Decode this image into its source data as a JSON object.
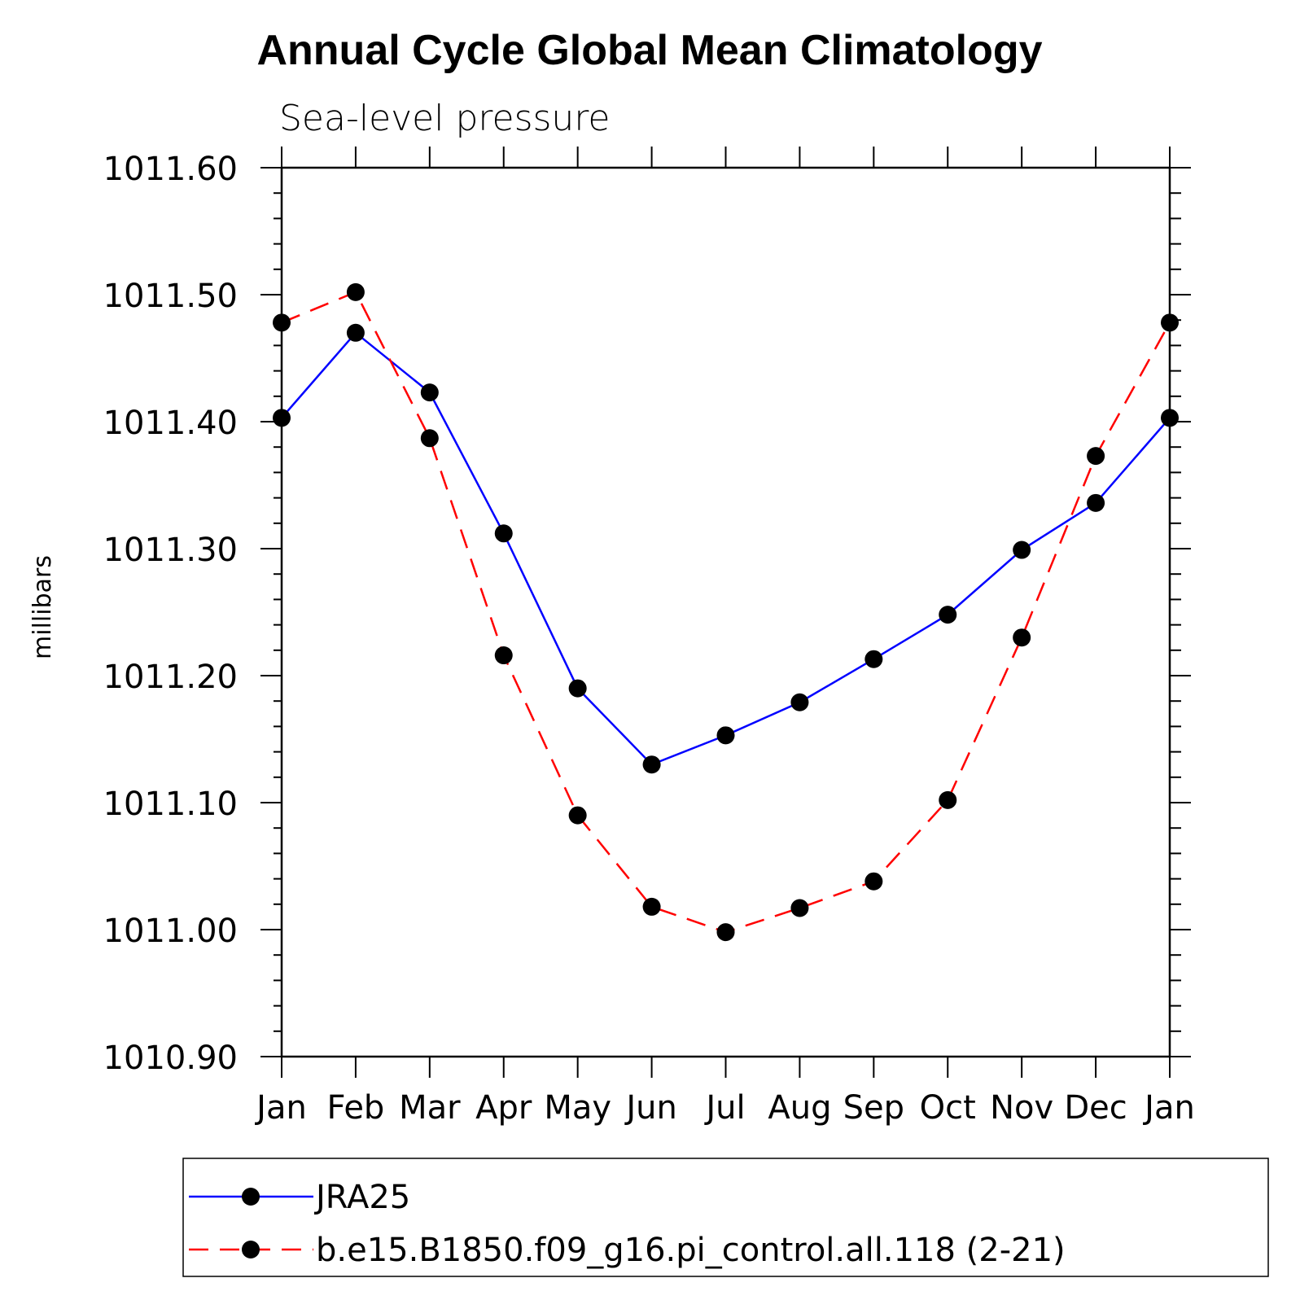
{
  "chart_data": {
    "type": "line",
    "title": "Annual Cycle Global Mean Climatology",
    "subtitle": "Sea-level pressure",
    "xlabel": "",
    "ylabel": "millibars",
    "categories": [
      "Jan",
      "Feb",
      "Mar",
      "Apr",
      "May",
      "Jun",
      "Jul",
      "Aug",
      "Sep",
      "Oct",
      "Nov",
      "Dec",
      "Jan"
    ],
    "ylim": [
      1010.9,
      1011.6
    ],
    "yticks": [
      "1010.90",
      "1011.00",
      "1011.10",
      "1011.20",
      "1011.30",
      "1011.40",
      "1011.50",
      "1011.60"
    ],
    "grid": false,
    "legend_position": "bottom",
    "series": [
      {
        "name": "JRA25",
        "color": "#0000ff",
        "dash": "solid",
        "values": [
          1011.403,
          1011.47,
          1011.423,
          1011.312,
          1011.19,
          1011.13,
          1011.153,
          1011.179,
          1011.213,
          1011.248,
          1011.299,
          1011.336,
          1011.403
        ]
      },
      {
        "name": "b.e15.B1850.f09_g16.pi_control.all.118 (2-21)",
        "color": "#ff0000",
        "dash": "dashed",
        "values": [
          1011.478,
          1011.502,
          1011.387,
          1011.216,
          1011.09,
          1011.018,
          1010.998,
          1011.017,
          1011.038,
          1011.102,
          1011.23,
          1011.373,
          1011.478
        ]
      }
    ]
  }
}
